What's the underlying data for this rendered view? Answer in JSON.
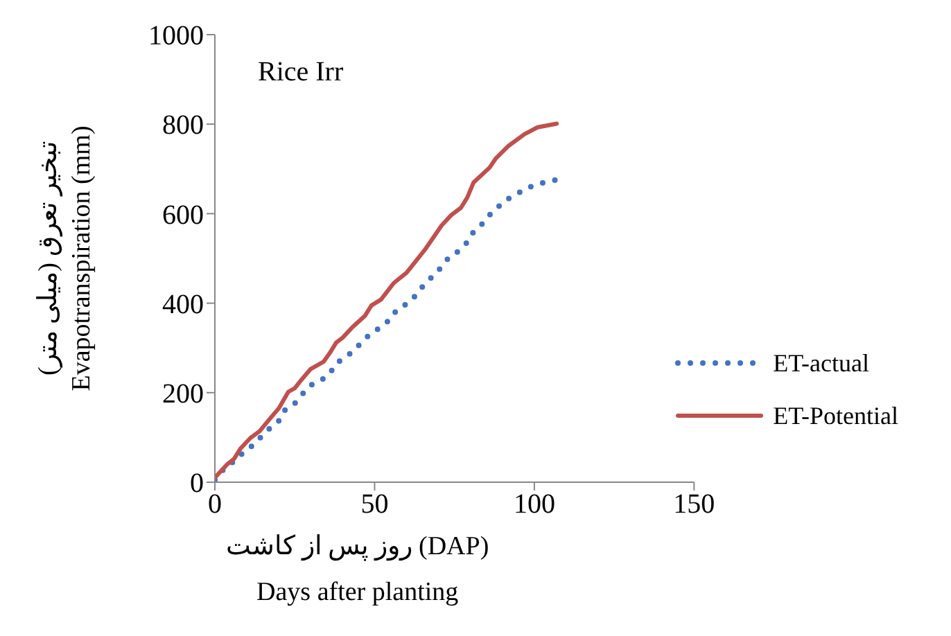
{
  "chart_data": {
    "type": "line",
    "title": "Rice Irr",
    "xlabel": "روز پس از کاشت (DAP)\nDays after planting",
    "ylabel": "تبخیر تعرق (میلی متر)\nEvapotranspiration (mm)",
    "xlim": [
      0,
      150
    ],
    "xticks": [
      0,
      50,
      100,
      150
    ],
    "ylim": [
      0,
      1000
    ],
    "yticks": [
      0,
      200,
      400,
      600,
      800,
      1000
    ],
    "grid": false,
    "legend": "right",
    "marker": "none",
    "series": [
      {
        "name": "ET-actual",
        "color": "#4472c4",
        "line_style": "dotted",
        "x": [
          0,
          3,
          6,
          9,
          12,
          14,
          17,
          20,
          22,
          25,
          27,
          30,
          33,
          36,
          38,
          41,
          44,
          46,
          49,
          52,
          55,
          57,
          60,
          63,
          65,
          68,
          71,
          73,
          76,
          79,
          81,
          84,
          86,
          89,
          92,
          95,
          98,
          101,
          104,
          107
        ],
        "values": [
          5,
          31,
          47,
          67,
          83,
          98,
          119,
          137,
          162,
          176,
          194,
          217,
          226,
          243,
          266,
          279,
          298,
          313,
          334,
          346,
          365,
          386,
          398,
          418,
          437,
          459,
          481,
          500,
          515,
          536,
          560,
          579,
          597,
          617,
          634,
          646,
          658,
          666,
          671,
          676
        ]
      },
      {
        "name": "ET-Potential",
        "color": "#c0504d",
        "line_style": "solid",
        "x": [
          0,
          4,
          6,
          8,
          11,
          14,
          17,
          20,
          23,
          25,
          27,
          30,
          34,
          36,
          38,
          40,
          43,
          47,
          49,
          52,
          56,
          60,
          62,
          66,
          71,
          74,
          77,
          79,
          81,
          86,
          88,
          92,
          97,
          101,
          107
        ],
        "values": [
          10,
          41,
          52,
          75,
          98,
          114,
          140,
          165,
          202,
          210,
          228,
          253,
          269,
          289,
          312,
          323,
          346,
          372,
          395,
          408,
          445,
          468,
          486,
          522,
          574,
          597,
          613,
          636,
          670,
          703,
          724,
          752,
          778,
          793,
          801
        ]
      }
    ]
  }
}
